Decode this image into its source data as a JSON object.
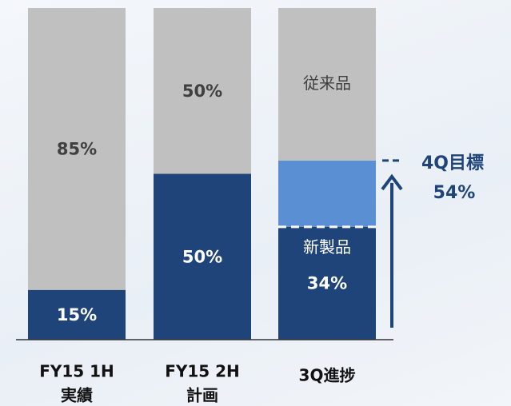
{
  "chart_data": {
    "type": "stacked_bar",
    "categories": [
      [
        "FY15 1H",
        "実績"
      ],
      [
        "FY15 2H",
        "計画"
      ],
      [
        "3Q進捗"
      ]
    ],
    "series": [
      {
        "name": "新製品",
        "color": "#1f4479",
        "values": [
          15,
          50,
          34
        ],
        "value_labels": [
          "15%",
          "50%",
          "34%"
        ],
        "label_color": "#ffffff"
      },
      {
        "color": "#5b8fd4",
        "values": [
          null,
          null,
          20
        ]
      },
      {
        "name": "従来品",
        "color": "#c0c0c0",
        "values": [
          85,
          50,
          46
        ],
        "value_labels": [
          "85%",
          "50%",
          null
        ],
        "label_color": "#404040"
      }
    ],
    "ylim": [
      0,
      100
    ],
    "annotation": {
      "text": "4Q目標",
      "value": 54,
      "value_label": "54%",
      "color": "#1f4479"
    }
  }
}
